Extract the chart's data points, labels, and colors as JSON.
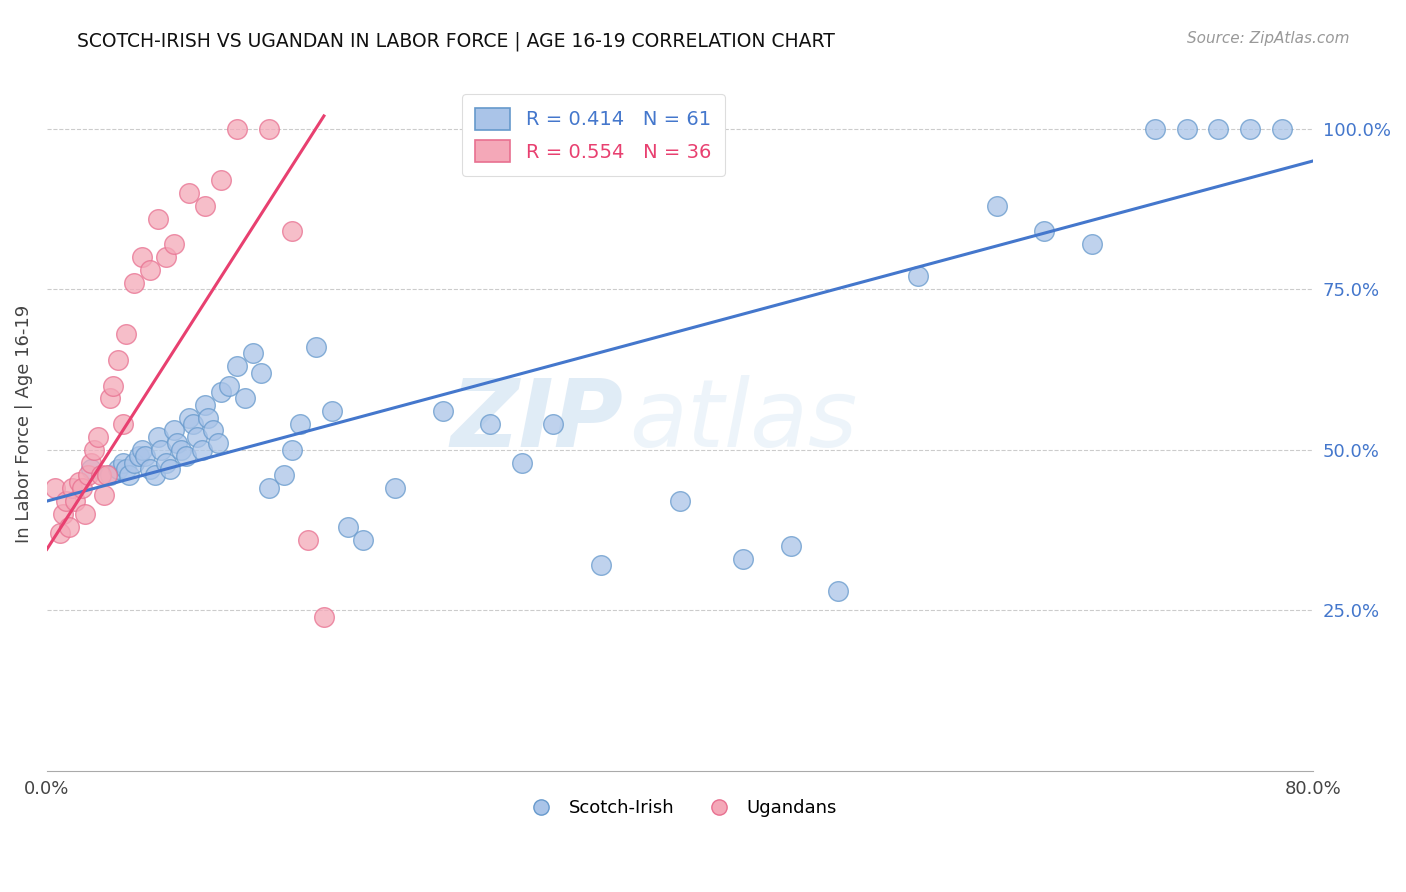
{
  "title": "SCOTCH-IRISH VS UGANDAN IN LABOR FORCE | AGE 16-19 CORRELATION CHART",
  "source": "Source: ZipAtlas.com",
  "ylabel": "In Labor Force | Age 16-19",
  "x_min": 0.0,
  "x_max": 0.8,
  "y_min": 0.0,
  "y_max": 1.08,
  "legend_blue_r": "R = 0.414",
  "legend_blue_n": "N = 61",
  "legend_pink_r": "R = 0.554",
  "legend_pink_n": "N = 36",
  "legend_label_blue": "Scotch-Irish",
  "legend_label_pink": "Ugandans",
  "blue_color": "#aac4e8",
  "pink_color": "#f4a8b8",
  "blue_edge_color": "#6699cc",
  "pink_edge_color": "#e87090",
  "blue_line_color": "#4477cc",
  "pink_line_color": "#e84070",
  "watermark_zip": "ZIP",
  "watermark_atlas": "atlas",
  "blue_line_x": [
    0.0,
    0.8
  ],
  "blue_line_y": [
    0.42,
    0.95
  ],
  "pink_line_x": [
    0.0,
    0.175
  ],
  "pink_line_y": [
    0.345,
    1.02
  ],
  "blue_scatter_x": [
    0.028,
    0.04,
    0.045,
    0.048,
    0.05,
    0.052,
    0.055,
    0.058,
    0.06,
    0.062,
    0.065,
    0.068,
    0.07,
    0.072,
    0.075,
    0.078,
    0.08,
    0.082,
    0.085,
    0.088,
    0.09,
    0.092,
    0.095,
    0.098,
    0.1,
    0.102,
    0.105,
    0.108,
    0.11,
    0.115,
    0.12,
    0.125,
    0.13,
    0.135,
    0.14,
    0.15,
    0.155,
    0.16,
    0.17,
    0.18,
    0.19,
    0.2,
    0.22,
    0.25,
    0.28,
    0.3,
    0.32,
    0.35,
    0.4,
    0.44,
    0.47,
    0.5,
    0.55,
    0.6,
    0.63,
    0.66,
    0.7,
    0.72,
    0.74,
    0.76,
    0.78
  ],
  "blue_scatter_y": [
    0.47,
    0.46,
    0.47,
    0.48,
    0.47,
    0.46,
    0.48,
    0.49,
    0.5,
    0.49,
    0.47,
    0.46,
    0.52,
    0.5,
    0.48,
    0.47,
    0.53,
    0.51,
    0.5,
    0.49,
    0.55,
    0.54,
    0.52,
    0.5,
    0.57,
    0.55,
    0.53,
    0.51,
    0.59,
    0.6,
    0.63,
    0.58,
    0.65,
    0.62,
    0.44,
    0.46,
    0.5,
    0.54,
    0.66,
    0.56,
    0.38,
    0.36,
    0.44,
    0.56,
    0.54,
    0.48,
    0.54,
    0.32,
    0.42,
    0.33,
    0.35,
    0.28,
    0.77,
    0.88,
    0.84,
    0.82,
    1.0,
    1.0,
    1.0,
    1.0,
    1.0
  ],
  "pink_scatter_x": [
    0.005,
    0.008,
    0.01,
    0.012,
    0.014,
    0.016,
    0.018,
    0.02,
    0.022,
    0.024,
    0.026,
    0.028,
    0.03,
    0.032,
    0.034,
    0.036,
    0.038,
    0.04,
    0.042,
    0.045,
    0.048,
    0.05,
    0.055,
    0.06,
    0.065,
    0.07,
    0.075,
    0.08,
    0.09,
    0.1,
    0.11,
    0.12,
    0.14,
    0.155,
    0.165,
    0.175
  ],
  "pink_scatter_y": [
    0.44,
    0.37,
    0.4,
    0.42,
    0.38,
    0.44,
    0.42,
    0.45,
    0.44,
    0.4,
    0.46,
    0.48,
    0.5,
    0.52,
    0.46,
    0.43,
    0.46,
    0.58,
    0.6,
    0.64,
    0.54,
    0.68,
    0.76,
    0.8,
    0.78,
    0.86,
    0.8,
    0.82,
    0.9,
    0.88,
    0.92,
    1.0,
    1.0,
    0.84,
    0.36,
    0.24
  ]
}
